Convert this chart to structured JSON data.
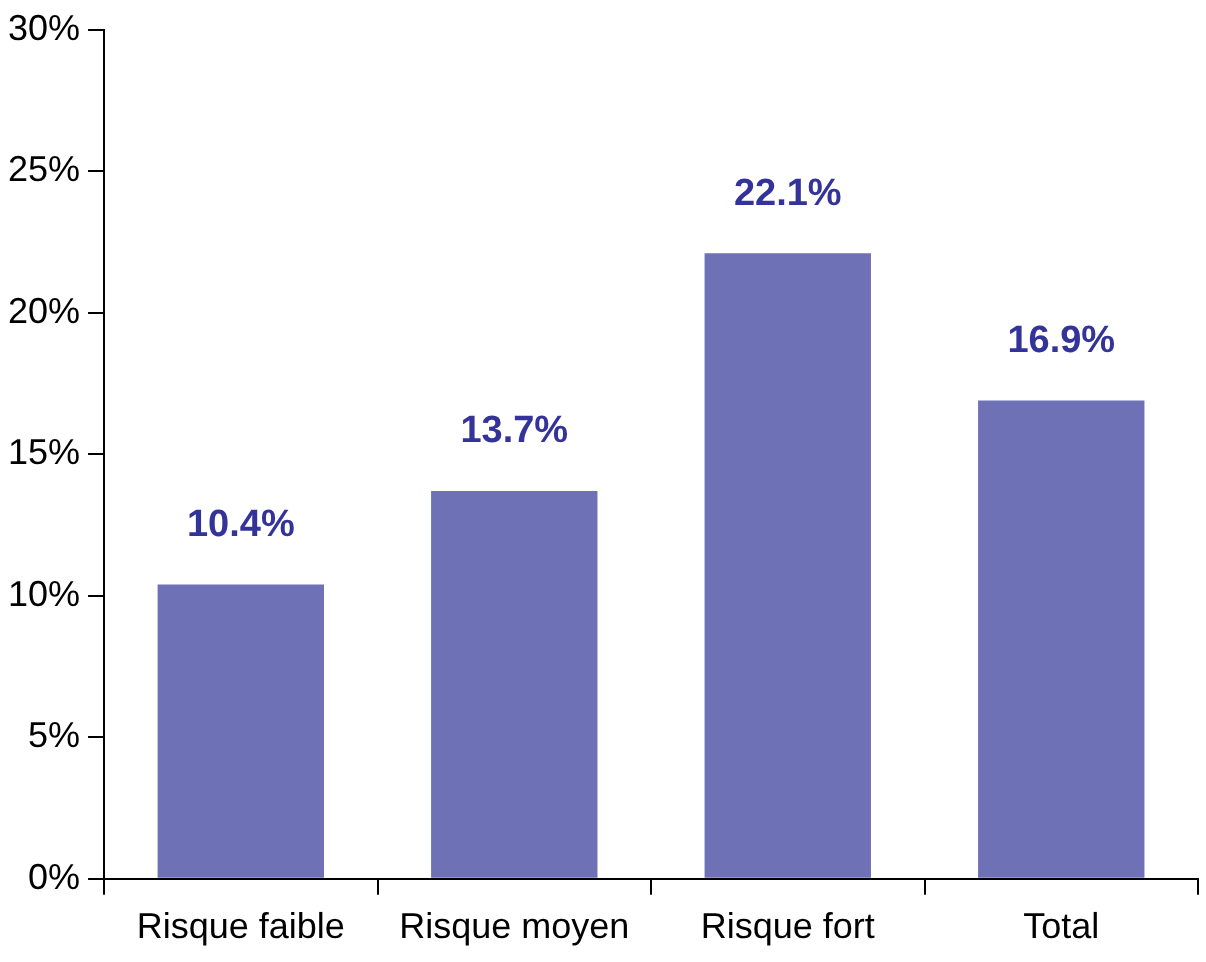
{
  "chart_data": {
    "type": "bar",
    "categories": [
      "Risque faible",
      "Risque moyen",
      "Risque fort",
      "Total"
    ],
    "values": [
      10.4,
      13.7,
      22.1,
      16.9
    ],
    "value_labels": [
      "10.4%",
      "13.7%",
      "22.1%",
      "16.9%"
    ],
    "color": "#6e71b6",
    "ylim": [
      0,
      30
    ],
    "yticks": [
      {
        "value": 0,
        "label": "0%"
      },
      {
        "value": 5,
        "label": "5%"
      },
      {
        "value": 10,
        "label": "10%"
      },
      {
        "value": 15,
        "label": "15%"
      },
      {
        "value": 20,
        "label": "20%"
      },
      {
        "value": 25,
        "label": "25%"
      },
      {
        "value": 30,
        "label": "30%"
      }
    ],
    "grid": false,
    "legend": false
  }
}
